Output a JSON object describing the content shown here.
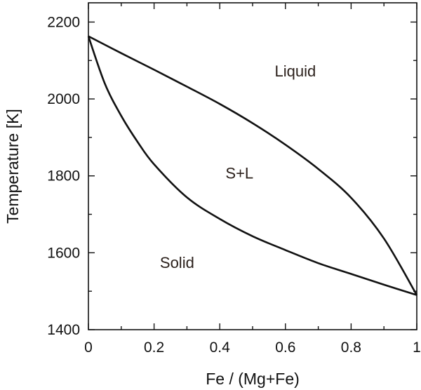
{
  "chart_data": {
    "type": "line",
    "xlabel": "Fe / (Mg+Fe)",
    "ylabel": "Temperature [K]",
    "xlim": [
      0,
      1
    ],
    "ylim": [
      1400,
      2250
    ],
    "x_ticks": [
      0,
      0.2,
      0.4,
      0.6,
      0.8,
      1
    ],
    "x_tick_labels": [
      "0",
      "0.2",
      "0.4",
      "0.6",
      "0.8",
      "1"
    ],
    "x_minor_ticks": [
      0.1,
      0.3,
      0.5,
      0.7,
      0.9
    ],
    "y_ticks": [
      1400,
      1600,
      1800,
      2000,
      2200
    ],
    "y_tick_labels": [
      "1400",
      "1600",
      "1800",
      "2000",
      "2200"
    ],
    "y_minor_ticks": [
      1500,
      1700,
      1900,
      2100
    ],
    "grid": false,
    "legend": "none",
    "series": [
      {
        "x": [
          0,
          0.1,
          0.2,
          0.3,
          0.4,
          0.5,
          0.6,
          0.7,
          0.8,
          0.9,
          1
        ],
        "y": [
          2163,
          2119,
          2076,
          2032,
          1987,
          1937,
          1881,
          1818,
          1743,
          1637,
          1490
        ]
      },
      {
        "x": [
          0,
          0.05,
          0.1,
          0.15,
          0.2,
          0.3,
          0.4,
          0.5,
          0.6,
          0.7,
          0.8,
          0.9,
          1
        ],
        "y": [
          2163,
          2040,
          1956,
          1888,
          1830,
          1744,
          1688,
          1643,
          1607,
          1573,
          1545,
          1517,
          1490
        ]
      }
    ],
    "annotations": [
      {
        "text": "Liquid",
        "x": 0.63,
        "y": 2073
      },
      {
        "text": "S+L",
        "x": 0.46,
        "y": 1808
      },
      {
        "text": "Solid",
        "x": 0.27,
        "y": 1575
      }
    ]
  }
}
